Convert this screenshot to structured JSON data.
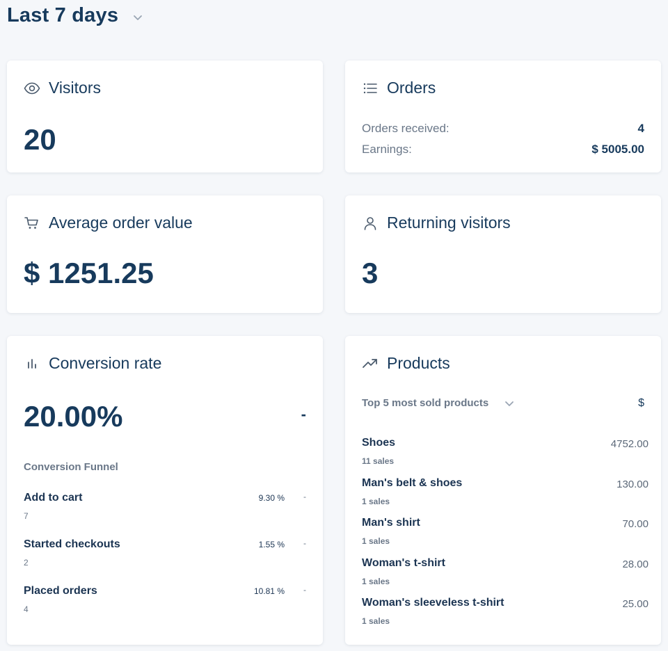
{
  "period": {
    "label": "Last 7 days"
  },
  "visitors": {
    "title": "Visitors",
    "value": "20"
  },
  "orders": {
    "title": "Orders",
    "received_label": "Orders received:",
    "received_value": "4",
    "earnings_label": "Earnings:",
    "earnings_value": "$ 5005.00"
  },
  "aov": {
    "title": "Average order value",
    "value": "$ 1251.25"
  },
  "returning": {
    "title": "Returning visitors",
    "value": "3"
  },
  "conversion": {
    "title": "Conversion rate",
    "value": "20.00%",
    "change": "-",
    "funnel_title": "Conversion Funnel",
    "funnel": [
      {
        "name": "Add to cart",
        "count": "7",
        "pct": "9.30 %",
        "change": "-"
      },
      {
        "name": "Started checkouts",
        "count": "2",
        "pct": "1.55 %",
        "change": "-"
      },
      {
        "name": "Placed orders",
        "count": "4",
        "pct": "10.81 %",
        "change": "-"
      }
    ]
  },
  "products": {
    "title": "Products",
    "select_label": "Top 5 most sold products",
    "currency": "$",
    "items": [
      {
        "name": "Shoes",
        "sales": "11 sales",
        "amount": "4752.00"
      },
      {
        "name": "Man's belt & shoes",
        "sales": "1 sales",
        "amount": "130.00"
      },
      {
        "name": "Man's shirt",
        "sales": "1 sales",
        "amount": "70.00"
      },
      {
        "name": "Woman's t-shirt",
        "sales": "1 sales",
        "amount": "28.00"
      },
      {
        "name": "Woman's sleeveless t-shirt",
        "sales": "1 sales",
        "amount": "25.00"
      }
    ]
  }
}
